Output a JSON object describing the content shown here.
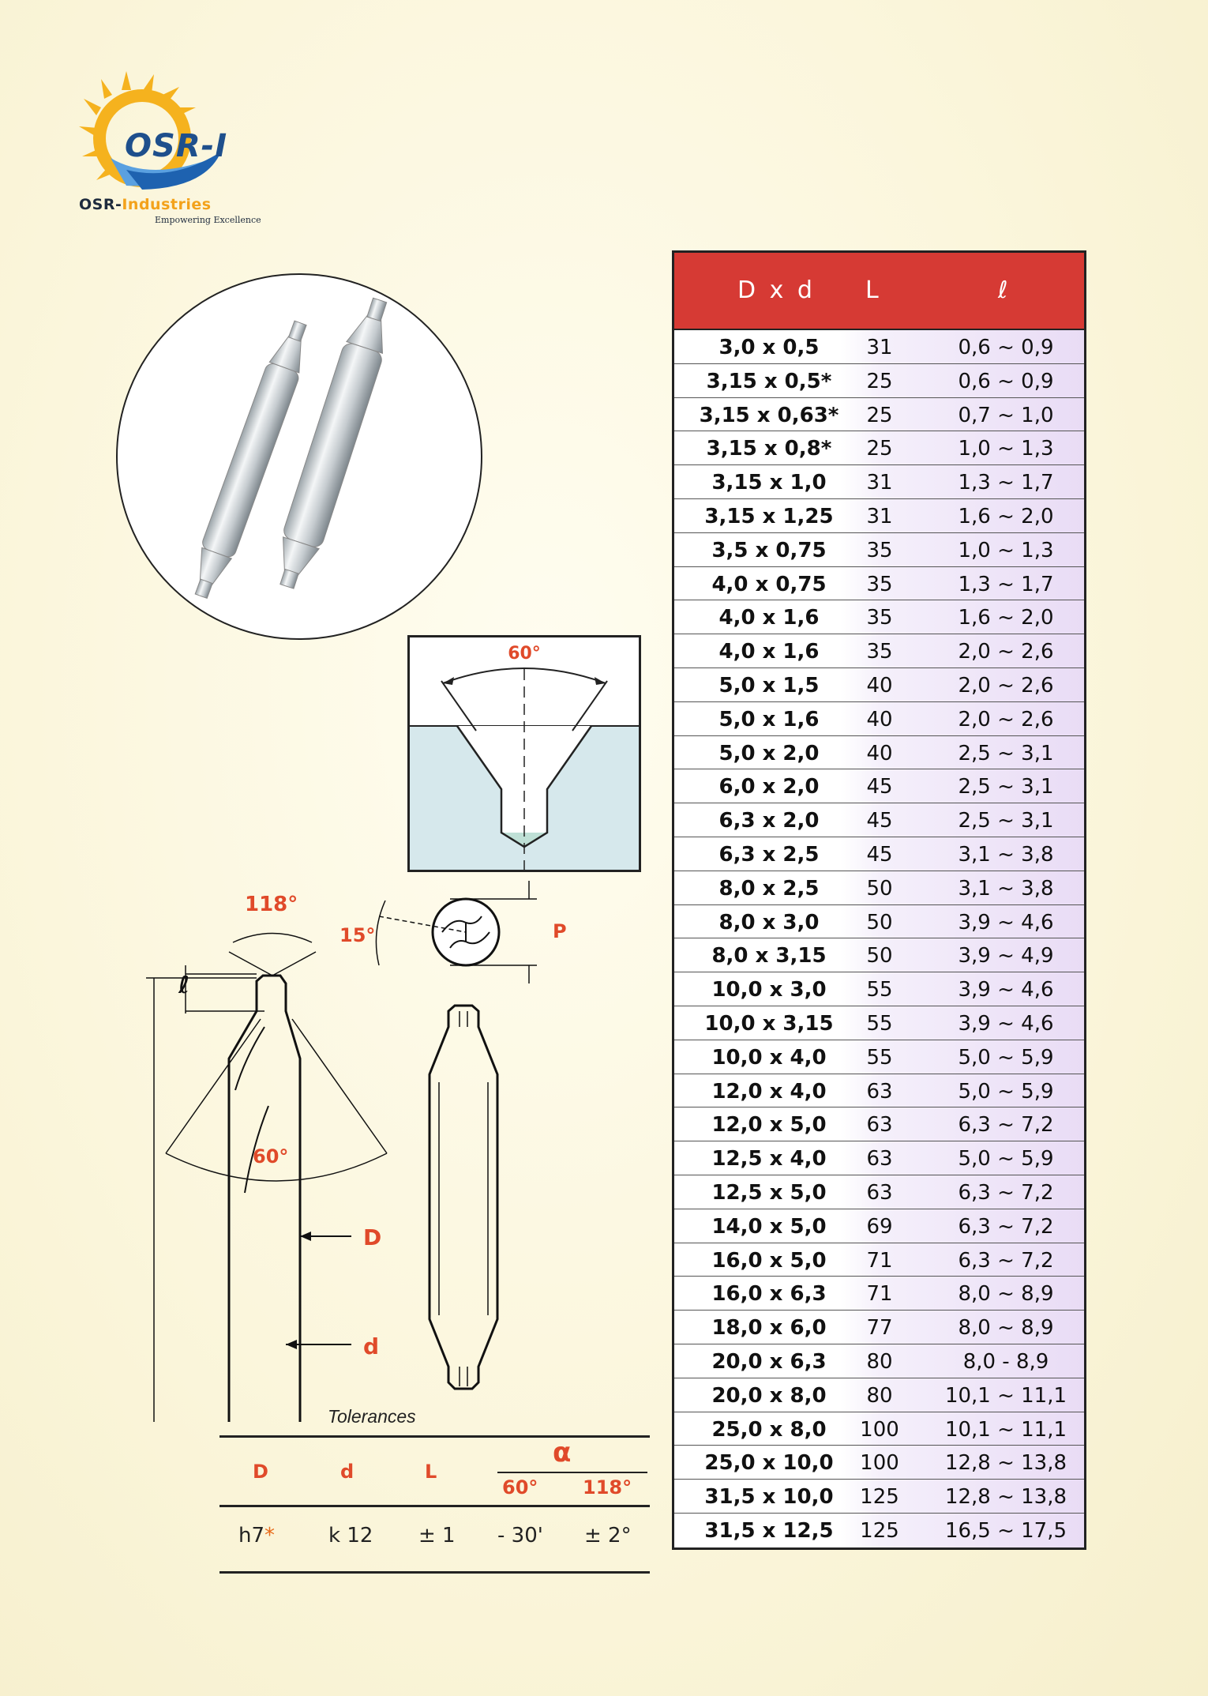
{
  "logo": {
    "mark": "OSR-I",
    "brand_part1": "OSR-",
    "brand_part2": "Industries",
    "tagline": "Empowering Excellence"
  },
  "cross_section": {
    "angle": "60°"
  },
  "drawing_labels": {
    "tip_angle": "118°",
    "cone_angle": "60°",
    "ell": "ℓ",
    "D": "D",
    "d": "d",
    "angle_15": "15°",
    "P": "P"
  },
  "tolerances": {
    "title": "Tolerances",
    "headers": {
      "D": "D",
      "d": "d",
      "L": "L",
      "alpha": "α",
      "a60": "60°",
      "a118": "118°"
    },
    "values": {
      "D": "h7",
      "D_star": "*",
      "d": "k 12",
      "L": "± 1",
      "a60": "- 30'",
      "a118": "± 2°"
    }
  },
  "spec_table": {
    "headers": {
      "dxd": "D x d",
      "L": "L",
      "ell": "ℓ"
    },
    "rows": [
      {
        "dxd": "3,0 x 0,5",
        "L": "31",
        "ell": "0,6 ~ 0,9"
      },
      {
        "dxd": "3,15 x 0,5*",
        "L": "25",
        "ell": "0,6 ~ 0,9"
      },
      {
        "dxd": "3,15 x 0,63*",
        "L": "25",
        "ell": "0,7 ~ 1,0"
      },
      {
        "dxd": "3,15 x 0,8*",
        "L": "25",
        "ell": "1,0 ~ 1,3"
      },
      {
        "dxd": "3,15 x 1,0",
        "L": "31",
        "ell": "1,3 ~ 1,7"
      },
      {
        "dxd": "3,15 x 1,25",
        "L": "31",
        "ell": "1,6 ~ 2,0"
      },
      {
        "dxd": "3,5 x 0,75",
        "L": "35",
        "ell": "1,0 ~ 1,3"
      },
      {
        "dxd": "4,0 x 0,75",
        "L": "35",
        "ell": "1,3 ~ 1,7"
      },
      {
        "dxd": "4,0 x 1,6",
        "L": "35",
        "ell": "1,6 ~ 2,0"
      },
      {
        "dxd": "4,0 x 1,6",
        "L": "35",
        "ell": "2,0 ~ 2,6"
      },
      {
        "dxd": "5,0 x 1,5",
        "L": "40",
        "ell": "2,0 ~ 2,6"
      },
      {
        "dxd": "5,0 x 1,6",
        "L": "40",
        "ell": "2,0 ~ 2,6"
      },
      {
        "dxd": "5,0 x 2,0",
        "L": "40",
        "ell": "2,5 ~ 3,1"
      },
      {
        "dxd": "6,0 x 2,0",
        "L": "45",
        "ell": "2,5 ~ 3,1"
      },
      {
        "dxd": "6,3 x 2,0",
        "L": "45",
        "ell": "2,5 ~ 3,1"
      },
      {
        "dxd": "6,3 x 2,5",
        "L": "45",
        "ell": "3,1 ~ 3,8"
      },
      {
        "dxd": "8,0 x 2,5",
        "L": "50",
        "ell": "3,1 ~ 3,8"
      },
      {
        "dxd": "8,0 x 3,0",
        "L": "50",
        "ell": "3,9 ~ 4,6"
      },
      {
        "dxd": "8,0 x 3,15",
        "L": "50",
        "ell": "3,9 ~ 4,9"
      },
      {
        "dxd": "10,0 x 3,0",
        "L": "55",
        "ell": "3,9 ~ 4,6"
      },
      {
        "dxd": "10,0 x 3,15",
        "L": "55",
        "ell": "3,9 ~ 4,6"
      },
      {
        "dxd": "10,0 x 4,0",
        "L": "55",
        "ell": "5,0 ~ 5,9"
      },
      {
        "dxd": "12,0 x 4,0",
        "L": "63",
        "ell": "5,0 ~ 5,9"
      },
      {
        "dxd": "12,0 x 5,0",
        "L": "63",
        "ell": "6,3 ~ 7,2"
      },
      {
        "dxd": "12,5 x 4,0",
        "L": "63",
        "ell": "5,0 ~ 5,9"
      },
      {
        "dxd": "12,5 x 5,0",
        "L": "63",
        "ell": "6,3 ~ 7,2"
      },
      {
        "dxd": "14,0 x 5,0",
        "L": "69",
        "ell": "6,3 ~ 7,2"
      },
      {
        "dxd": "16,0 x 5,0",
        "L": "71",
        "ell": "6,3 ~ 7,2"
      },
      {
        "dxd": "16,0 x 6,3",
        "L": "71",
        "ell": "8,0 ~ 8,9"
      },
      {
        "dxd": "18,0 x 6,0",
        "L": "77",
        "ell": "8,0 ~ 8,9"
      },
      {
        "dxd": "20,0 x 6,3",
        "L": "80",
        "ell": "8,0 - 8,9"
      },
      {
        "dxd": "20,0 x 8,0",
        "L": "80",
        "ell": "10,1 ~ 11,1"
      },
      {
        "dxd": "25,0 x 8,0",
        "L": "100",
        "ell": "10,1 ~ 11,1"
      },
      {
        "dxd": "25,0 x 10,0",
        "L": "100",
        "ell": "12,8 ~ 13,8"
      },
      {
        "dxd": "31,5 x 10,0",
        "L": "125",
        "ell": "12,8 ~ 13,8"
      },
      {
        "dxd": "31,5 x 12,5",
        "L": "125",
        "ell": "16,5 ~ 17,5"
      }
    ]
  },
  "colors": {
    "header_red": "#d63a34",
    "accent_orange": "#e04a2a",
    "logo_blue": "#1e4f8c",
    "sun": "#f3a21b"
  }
}
